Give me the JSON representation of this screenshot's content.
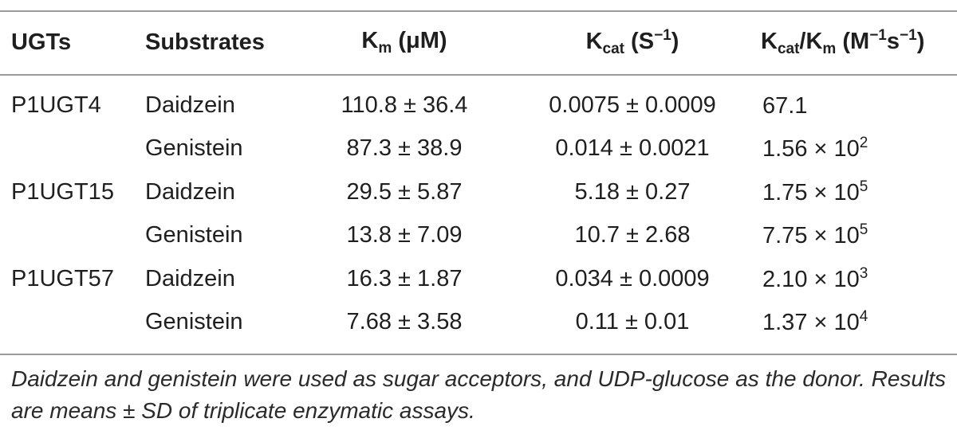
{
  "table": {
    "headers": {
      "ugts": "UGTs",
      "substrates": "Substrates",
      "km_main": "K",
      "km_sub": "m",
      "km_unit": " (μM)",
      "kcat_main": "K",
      "kcat_sub": "cat",
      "kcat_unit_pre": " (S",
      "kcat_unit_sup": "−1",
      "kcat_unit_post": ")",
      "ratio_main": "K",
      "ratio_sub1": "cat",
      "ratio_mid": "/K",
      "ratio_sub2": "m",
      "ratio_unit_pre": " (M",
      "ratio_sup1": "−1",
      "ratio_unit_mid": "s",
      "ratio_sup2": "−1",
      "ratio_unit_post": ")"
    },
    "rows": [
      {
        "ugt": "P1UGT4",
        "substrate": "Daidzein",
        "km": "110.8 ± 36.4",
        "kcat": "0.0075 ± 0.0009",
        "ratio_base": "67.1",
        "ratio_exp": ""
      },
      {
        "ugt": "",
        "substrate": "Genistein",
        "km": "87.3 ± 38.9",
        "kcat": "0.014 ± 0.0021",
        "ratio_base": "1.56 × 10",
        "ratio_exp": "2"
      },
      {
        "ugt": "P1UGT15",
        "substrate": "Daidzein",
        "km": "29.5 ± 5.87",
        "kcat": "5.18 ± 0.27",
        "ratio_base": "1.75 × 10",
        "ratio_exp": "5"
      },
      {
        "ugt": "",
        "substrate": "Genistein",
        "km": "13.8 ± 7.09",
        "kcat": "10.7 ± 2.68",
        "ratio_base": "7.75 × 10",
        "ratio_exp": "5"
      },
      {
        "ugt": "P1UGT57",
        "substrate": "Daidzein",
        "km": "16.3 ± 1.87",
        "kcat": "0.034 ± 0.0009",
        "ratio_base": "2.10 × 10",
        "ratio_exp": "3"
      },
      {
        "ugt": "",
        "substrate": "Genistein",
        "km": "7.68 ± 3.58",
        "kcat": "0.11 ± 0.01",
        "ratio_base": "1.37 × 10",
        "ratio_exp": "4"
      }
    ]
  },
  "footnote": "Daidzein and genistein were used as sugar acceptors, and UDP-glucose as the donor. Results are means ± SD of triplicate enzymatic assays.",
  "colors": {
    "text": "#1f1f1f",
    "rule": "#9a9a9a"
  }
}
